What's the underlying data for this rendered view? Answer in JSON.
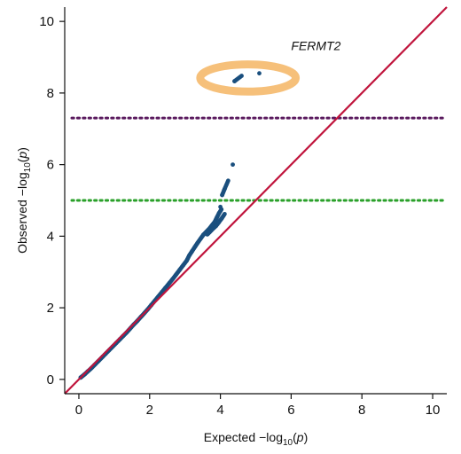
{
  "chart_data": {
    "type": "scatter",
    "title": "",
    "xlabel_main": "Expected",
    "xlabel_sub": "10",
    "xlabel_var": "p",
    "ylabel_main": "Observed",
    "ylabel_sub": "10",
    "ylabel_var": "p",
    "xlim": [
      -0.4,
      10.4
    ],
    "ylim": [
      -0.4,
      10.4
    ],
    "x_ticks": [
      0,
      2,
      4,
      6,
      8,
      10
    ],
    "y_ticks": [
      0,
      2,
      4,
      6,
      8,
      10
    ],
    "x_tick_labels": [
      "0",
      "2",
      "4",
      "6",
      "8",
      "10"
    ],
    "y_tick_labels": [
      "0",
      "2",
      "4",
      "6",
      "8",
      "10"
    ],
    "grid": false,
    "colors": {
      "points": "#1a4f7e",
      "identity_line": "#c0143c",
      "genome_wide_line": "#5a1a5e",
      "suggestive_line": "#2aa02a",
      "highlight_ring": "#f6c07a"
    },
    "reference_lines": [
      {
        "type": "identity",
        "color": "#c0143c"
      },
      {
        "type": "horizontal",
        "y": 7.3,
        "style": "dotted",
        "color": "#5a1a5e"
      },
      {
        "type": "horizontal",
        "y": 5.0,
        "style": "dotted",
        "color": "#2aa02a"
      }
    ],
    "annotation": {
      "text": "FERMT2",
      "x": 6.0,
      "y": 9.2
    },
    "highlight": {
      "cx": 4.78,
      "cy": 8.42,
      "rx": 1.35,
      "ry": 0.38
    },
    "points": [
      [
        0.05,
        0.05
      ],
      [
        0.15,
        0.13
      ],
      [
        0.25,
        0.22
      ],
      [
        0.35,
        0.31
      ],
      [
        0.45,
        0.41
      ],
      [
        0.55,
        0.51
      ],
      [
        0.65,
        0.61
      ],
      [
        0.75,
        0.71
      ],
      [
        0.85,
        0.81
      ],
      [
        0.95,
        0.91
      ],
      [
        1.05,
        1.01
      ],
      [
        1.15,
        1.11
      ],
      [
        1.25,
        1.21
      ],
      [
        1.35,
        1.31
      ],
      [
        1.45,
        1.42
      ],
      [
        1.55,
        1.53
      ],
      [
        1.65,
        1.63
      ],
      [
        1.75,
        1.74
      ],
      [
        1.85,
        1.85
      ],
      [
        1.95,
        1.96
      ],
      [
        2.05,
        2.08
      ],
      [
        2.15,
        2.2
      ],
      [
        2.25,
        2.32
      ],
      [
        2.35,
        2.44
      ],
      [
        2.45,
        2.56
      ],
      [
        2.55,
        2.68
      ],
      [
        2.65,
        2.8
      ],
      [
        2.75,
        2.93
      ],
      [
        2.85,
        3.06
      ],
      [
        2.95,
        3.19
      ],
      [
        3.05,
        3.32
      ],
      [
        3.12,
        3.46
      ],
      [
        3.2,
        3.58
      ],
      [
        3.28,
        3.7
      ],
      [
        3.36,
        3.82
      ],
      [
        3.44,
        3.93
      ],
      [
        3.52,
        4.04
      ],
      [
        3.6,
        4.12
      ],
      [
        3.68,
        4.2
      ],
      [
        3.76,
        4.3
      ],
      [
        3.84,
        4.4
      ],
      [
        3.9,
        4.52
      ],
      [
        3.96,
        4.64
      ],
      [
        4.03,
        4.75
      ],
      [
        3.63,
        4.05
      ],
      [
        3.7,
        4.12
      ],
      [
        3.78,
        4.2
      ],
      [
        3.87,
        4.28
      ],
      [
        3.95,
        4.38
      ],
      [
        4.04,
        4.5
      ],
      [
        4.12,
        4.62
      ],
      [
        4.0,
        4.82
      ],
      [
        4.05,
        5.15
      ],
      [
        4.12,
        5.32
      ],
      [
        4.22,
        5.55
      ],
      [
        4.35,
        6.0
      ],
      [
        4.4,
        8.33
      ],
      [
        4.6,
        8.48
      ],
      [
        5.1,
        8.55
      ]
    ]
  }
}
